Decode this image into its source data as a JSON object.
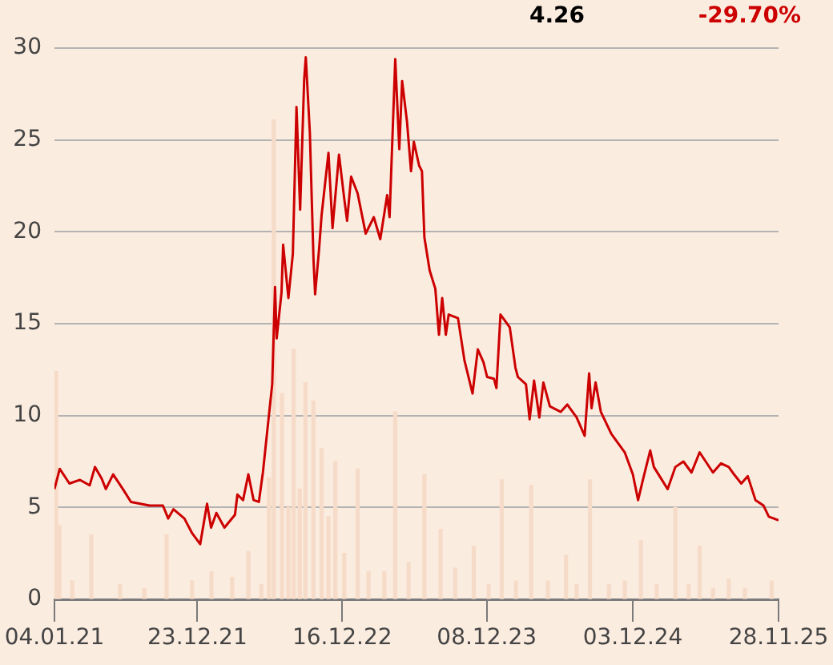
{
  "chart_data": {
    "type": "line",
    "annotations": [
      "4.26",
      "-29.70%"
    ],
    "xlim": [
      "2021-01-04",
      "2025-11-28"
    ],
    "xticks": [
      {
        "value": "2021-01-04",
        "label": "04.01.21"
      },
      {
        "value": "2021-12-23",
        "label": "23.12.21"
      },
      {
        "value": "2022-12-16",
        "label": "16.12.22"
      },
      {
        "value": "2023-12-08",
        "label": "08.12.23"
      },
      {
        "value": "2024-12-03",
        "label": "03.12.24"
      },
      {
        "value": "2025-11-28",
        "label": "28.11.25"
      }
    ],
    "ylim": [
      0,
      30
    ],
    "yticks": [
      0,
      5,
      10,
      15,
      20,
      25,
      30
    ],
    "grid": "y",
    "legend": false,
    "series": [
      {
        "type": "bar",
        "color": "#f6dcc8",
        "x": [
          "2021-01-08",
          "2021-01-16",
          "2021-02-17",
          "2021-04-05",
          "2021-06-15",
          "2021-08-14",
          "2021-10-08",
          "2021-12-10",
          "2022-01-27",
          "2022-03-19",
          "2022-04-28",
          "2022-05-30",
          "2022-06-18",
          "2022-06-30",
          "2022-07-20",
          "2022-08-05",
          "2022-08-18",
          "2022-09-02",
          "2022-09-16",
          "2022-10-06",
          "2022-10-26",
          "2022-11-12",
          "2022-11-29",
          "2022-12-21",
          "2023-01-23",
          "2023-02-19",
          "2023-03-30",
          "2023-04-26",
          "2023-05-29",
          "2023-07-07",
          "2023-08-16",
          "2023-09-21",
          "2023-11-06",
          "2023-12-13",
          "2024-01-14",
          "2024-02-18",
          "2024-03-27",
          "2024-05-07",
          "2024-06-21",
          "2024-07-17",
          "2024-08-19",
          "2024-10-05",
          "2024-11-13",
          "2024-12-23",
          "2025-01-31",
          "2025-03-18",
          "2025-04-20",
          "2025-05-17",
          "2025-06-19",
          "2025-07-28",
          "2025-09-06",
          "2025-11-11"
        ],
        "values": [
          12.4,
          4.0,
          1.0,
          3.5,
          0.8,
          0.6,
          3.5,
          1.0,
          1.5,
          1.2,
          2.6,
          0.8,
          6.6,
          26.1,
          11.2,
          5.0,
          13.6,
          6.0,
          11.8,
          10.8,
          8.2,
          4.5,
          7.5,
          2.5,
          7.1,
          1.5,
          1.5,
          10.2,
          2.0,
          6.8,
          3.8,
          1.7,
          2.9,
          0.8,
          6.5,
          1.0,
          6.2,
          1.0,
          2.4,
          0.8,
          6.5,
          0.8,
          1.0,
          3.2,
          0.8,
          5.0,
          0.8,
          2.9,
          0.6,
          1.1,
          0.6,
          1.0
        ]
      },
      {
        "color": "#cc0000",
        "x": [
          "2021-01-04",
          "2021-01-17",
          "2021-02-10",
          "2021-03-08",
          "2021-04-01",
          "2021-04-14",
          "2021-04-30",
          "2021-05-11",
          "2021-05-29",
          "2021-06-22",
          "2021-07-12",
          "2021-08-27",
          "2021-09-29",
          "2021-10-12",
          "2021-10-25",
          "2021-11-21",
          "2021-12-10",
          "2021-12-30",
          "2022-01-16",
          "2022-01-26",
          "2022-02-08",
          "2022-02-28",
          "2022-03-26",
          "2022-04-01",
          "2022-04-15",
          "2022-04-28",
          "2022-05-11",
          "2022-05-24",
          "2022-06-03",
          "2022-06-13",
          "2022-06-26",
          "2022-07-03",
          "2022-07-07",
          "2022-07-19",
          "2022-07-23",
          "2022-08-05",
          "2022-08-16",
          "2022-08-25",
          "2022-09-03",
          "2022-09-13",
          "2022-09-17",
          "2022-09-27",
          "2022-10-06",
          "2022-10-10",
          "2022-10-20",
          "2022-10-26",
          "2022-11-12",
          "2022-11-22",
          "2022-12-08",
          "2022-12-21",
          "2022-12-28",
          "2023-01-07",
          "2023-01-23",
          "2023-02-12",
          "2023-03-04",
          "2023-03-20",
          "2023-04-06",
          "2023-04-12",
          "2023-04-26",
          "2023-05-06",
          "2023-05-13",
          "2023-05-25",
          "2023-06-04",
          "2023-06-11",
          "2023-06-24",
          "2023-07-01",
          "2023-07-07",
          "2023-07-20",
          "2023-08-03",
          "2023-08-12",
          "2023-08-20",
          "2023-08-29",
          "2023-09-05",
          "2023-09-28",
          "2023-10-14",
          "2023-11-03",
          "2023-11-16",
          "2023-11-30",
          "2023-12-09",
          "2023-12-26",
          "2024-01-01",
          "2024-01-11",
          "2024-02-03",
          "2024-02-17",
          "2024-02-23",
          "2024-03-14",
          "2024-03-23",
          "2024-04-03",
          "2024-04-16",
          "2024-04-26",
          "2024-05-12",
          "2024-06-08",
          "2024-06-24",
          "2024-07-17",
          "2024-08-06",
          "2024-08-17",
          "2024-08-23",
          "2024-09-02",
          "2024-09-15",
          "2024-10-11",
          "2024-11-13",
          "2024-12-03",
          "2024-12-16",
          "2024-12-29",
          "2025-01-15",
          "2025-01-24",
          "2025-02-27",
          "2025-03-18",
          "2025-04-07",
          "2025-04-27",
          "2025-05-17",
          "2025-06-19",
          "2025-07-09",
          "2025-07-28",
          "2025-08-10",
          "2025-08-28",
          "2025-09-13",
          "2025-10-02",
          "2025-10-22",
          "2025-11-04",
          "2025-11-28"
        ],
        "values": [
          6.0,
          7.1,
          6.3,
          6.5,
          6.2,
          7.2,
          6.6,
          6.0,
          6.8,
          6.0,
          5.3,
          5.1,
          5.1,
          4.4,
          4.9,
          4.4,
          3.6,
          3.0,
          5.2,
          3.9,
          4.7,
          3.9,
          4.6,
          5.7,
          5.4,
          6.8,
          5.4,
          5.3,
          6.9,
          9.0,
          11.7,
          17.0,
          14.2,
          16.7,
          19.3,
          16.4,
          18.8,
          26.8,
          21.2,
          28.3,
          29.5,
          25.4,
          18.5,
          16.6,
          19.1,
          20.9,
          24.3,
          20.2,
          24.2,
          21.8,
          20.6,
          23.0,
          22.1,
          19.9,
          20.8,
          19.6,
          22.0,
          20.8,
          29.4,
          24.5,
          28.2,
          26.0,
          23.3,
          24.9,
          23.6,
          23.3,
          19.7,
          17.9,
          16.9,
          14.4,
          16.4,
          14.4,
          15.5,
          15.3,
          13.0,
          11.2,
          13.6,
          12.9,
          12.1,
          12.0,
          11.5,
          15.5,
          14.8,
          12.6,
          12.1,
          11.7,
          9.8,
          11.9,
          9.9,
          11.8,
          10.5,
          10.2,
          10.6,
          9.9,
          8.9,
          12.3,
          10.4,
          11.8,
          10.2,
          9.0,
          8.0,
          6.8,
          5.4,
          6.6,
          8.1,
          7.2,
          6.0,
          7.2,
          7.5,
          6.9,
          8.0,
          6.9,
          7.4,
          7.2,
          6.8,
          6.3,
          6.7,
          5.4,
          5.1,
          4.5,
          4.3
        ]
      }
    ]
  }
}
